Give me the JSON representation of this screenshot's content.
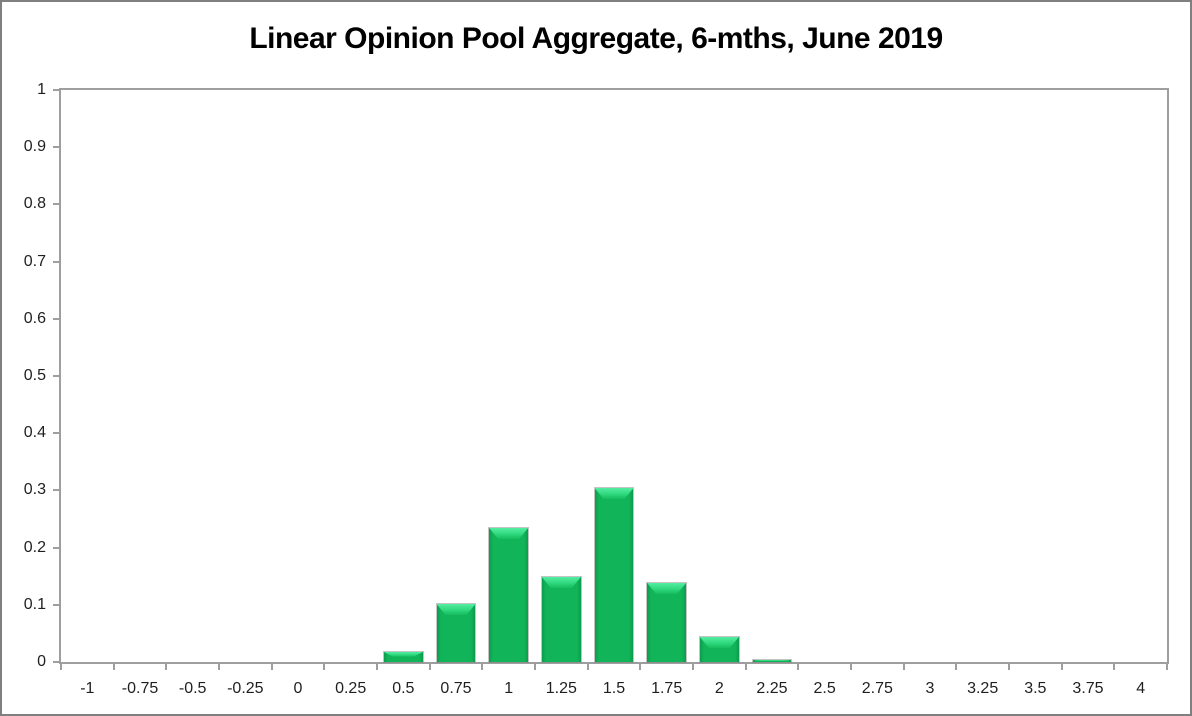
{
  "chart_data": {
    "type": "bar",
    "title": "Linear Opinion Pool Aggregate, 6-mths, June 2019",
    "categories": [
      "-1",
      "-0.75",
      "-0.5",
      "-0.25",
      "0",
      "0.25",
      "0.5",
      "0.75",
      "1",
      "1.25",
      "1.5",
      "1.75",
      "2",
      "2.25",
      "2.5",
      "2.75",
      "3",
      "3.25",
      "3.5",
      "3.75",
      "4"
    ],
    "values": [
      0,
      0,
      0,
      0,
      0,
      0,
      0.018,
      0.102,
      0.235,
      0.148,
      0.305,
      0.138,
      0.043,
      0.004,
      0,
      0,
      0,
      0,
      0,
      0,
      0
    ],
    "xlabel": "",
    "ylabel": "",
    "ylim": [
      0,
      1
    ],
    "yticks": [
      "0",
      "0.1",
      "0.2",
      "0.3",
      "0.4",
      "0.5",
      "0.6",
      "0.7",
      "0.8",
      "0.9",
      "1"
    ],
    "grid": false,
    "legend": null,
    "colors": {
      "bar_fill": "#12b45a",
      "bar_bevel_highlight": "#55eda2",
      "bar_edge_dark": "#0a9c4d",
      "axis_line": "#9e9e9e",
      "tick_label": "#1f1f1f",
      "title": "#000000",
      "outer_border": "#7f7f7f",
      "background": "#ffffff"
    }
  }
}
